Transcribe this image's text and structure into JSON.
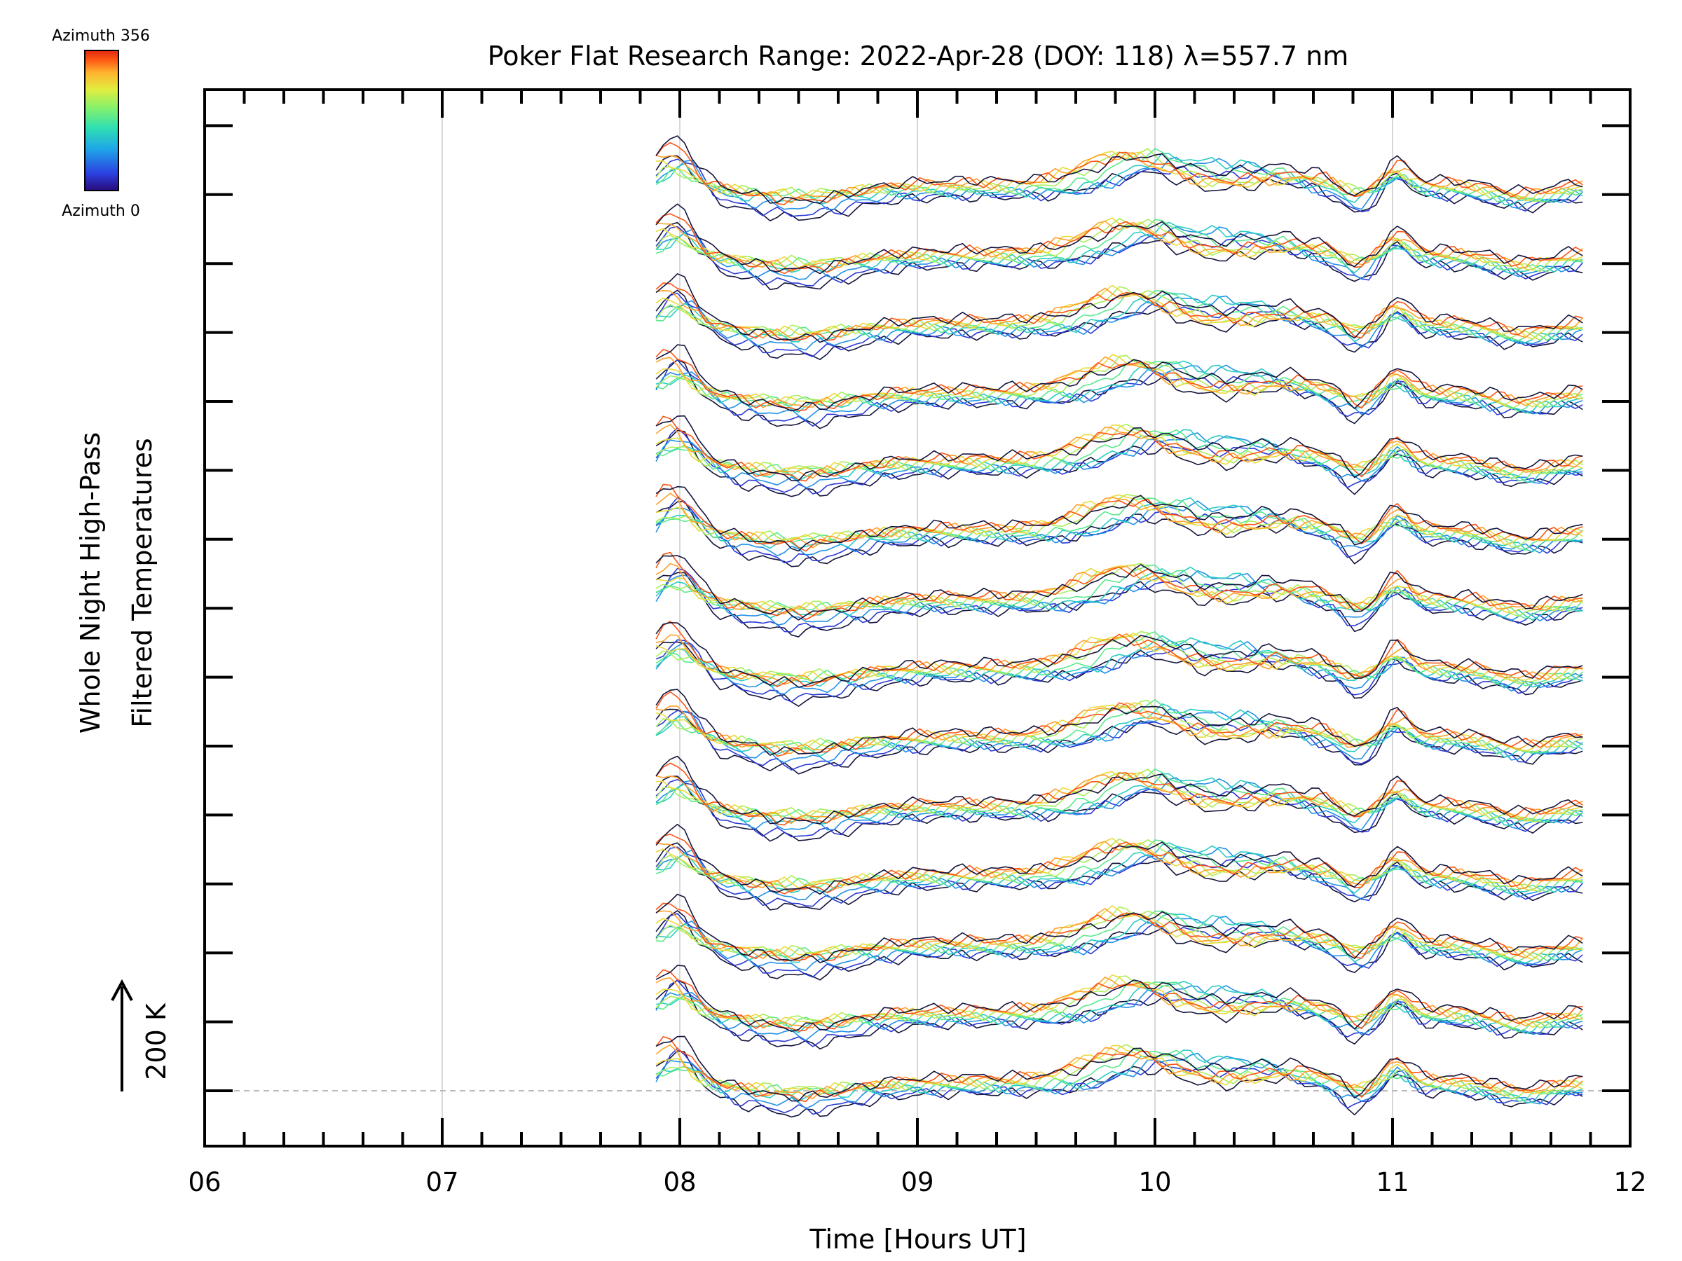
{
  "chart_data": {
    "type": "line",
    "title": "Poker Flat Research Range: 2022-Apr-28 (DOY: 118) λ=557.7 nm",
    "xlabel": "Time [Hours UT]",
    "ylabel_line1": "Whole Night High-Pass",
    "ylabel_line2": "Filtered Temperatures",
    "scale_label": "200 K",
    "xlim": [
      6,
      12
    ],
    "x_ticks": [
      "06",
      "07",
      "08",
      "09",
      "10",
      "11",
      "12"
    ],
    "x_tick_values": [
      6,
      7,
      8,
      9,
      10,
      11,
      12
    ],
    "x_grid_values": [
      7,
      8,
      9,
      10,
      11
    ],
    "data_time_range": [
      7.9,
      11.82
    ],
    "stack_rows": 14,
    "colorbar": {
      "top_label": "Azimuth 356",
      "bottom_label": "Azimuth 0",
      "colormap": "rainbow (blue to red)"
    },
    "colors": {
      "axes": "#000000",
      "grid": "#d8d8d8",
      "baseline": "#bbbbbb",
      "colormap_stops": [
        "#2a0a78",
        "#2b3fe0",
        "#1fa8e8",
        "#2fe0b0",
        "#7ff070",
        "#e0ee40",
        "#ffb430",
        "#ff5a14",
        "#e02810"
      ],
      "dark_traces": "#14143c"
    }
  }
}
